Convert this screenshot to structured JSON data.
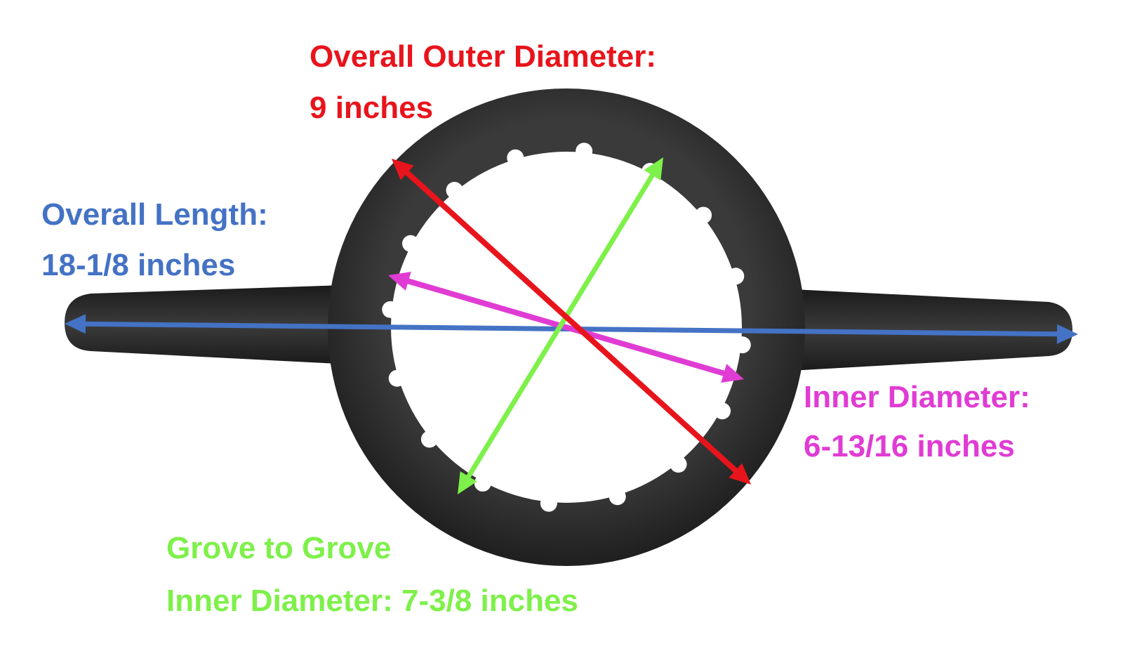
{
  "annotations": {
    "outer": {
      "line1": "Overall Outer Diameter:",
      "line2": "9 inches",
      "color": "#e8141c"
    },
    "length": {
      "line1": "Overall Length:",
      "line2": "18-1/8 inches",
      "color": "#4472c4"
    },
    "inner": {
      "line1": "Inner Diameter:",
      "line2": "6-13/16 inches",
      "color": "#e03cd4"
    },
    "groove": {
      "line1": "Grove to Grove",
      "line2": "Inner Diameter: 7-3/8 inches",
      "color": "#7ef04a"
    }
  },
  "object": {
    "name": "wrench-ring",
    "color": "#2b2b2b"
  }
}
